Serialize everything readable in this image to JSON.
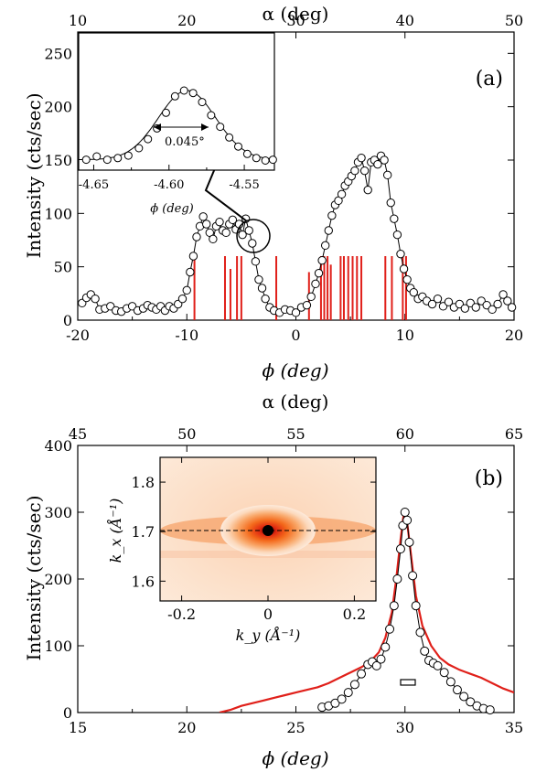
{
  "chart_data": [
    {
      "panel": "(a)",
      "type": "scatter",
      "xlabel": "ϕ (deg)",
      "ylabel": "Intensity (cts/sec)",
      "top_xlabel": "α (deg)",
      "xlim": [
        -20,
        20
      ],
      "ylim": [
        0,
        270
      ],
      "x_ticks": [
        "-20",
        "-10",
        "0",
        "10",
        "20"
      ],
      "y_ticks": [
        "0",
        "50",
        "100",
        "150",
        "200",
        "250"
      ],
      "top_x_ticks": [
        "10",
        "20",
        "30",
        "40",
        "50"
      ],
      "series": [
        {
          "points": [
            [
              -19.6,
              16
            ],
            [
              -19.2,
              21
            ],
            [
              -18.8,
              24
            ],
            [
              -18.4,
              20
            ],
            [
              -18.0,
              10
            ],
            [
              -17.5,
              11
            ],
            [
              -17.0,
              13
            ],
            [
              -16.5,
              9
            ],
            [
              -16.0,
              8
            ],
            [
              -15.5,
              11
            ],
            [
              -15.0,
              13
            ],
            [
              -14.5,
              9
            ],
            [
              -14.0,
              11
            ],
            [
              -13.6,
              14
            ],
            [
              -13.2,
              12
            ],
            [
              -12.8,
              10
            ],
            [
              -12.4,
              13
            ],
            [
              -12.0,
              9
            ],
            [
              -11.6,
              13
            ],
            [
              -11.2,
              11
            ],
            [
              -10.8,
              15
            ],
            [
              -10.4,
              20
            ],
            [
              -10.0,
              28
            ],
            [
              -9.7,
              45
            ],
            [
              -9.4,
              60
            ],
            [
              -9.1,
              78
            ],
            [
              -8.8,
              88
            ],
            [
              -8.5,
              97
            ],
            [
              -8.2,
              90
            ],
            [
              -7.9,
              82
            ],
            [
              -7.6,
              76
            ],
            [
              -7.3,
              88
            ],
            [
              -7.0,
              92
            ],
            [
              -6.7,
              84
            ],
            [
              -6.4,
              82
            ],
            [
              -6.1,
              90
            ],
            [
              -5.8,
              94
            ],
            [
              -5.5,
              85
            ],
            [
              -5.2,
              90
            ],
            [
              -4.9,
              80
            ],
            [
              -4.6,
              95
            ],
            [
              -4.3,
              84
            ],
            [
              -4.0,
              72
            ],
            [
              -3.7,
              55
            ],
            [
              -3.4,
              38
            ],
            [
              -3.1,
              30
            ],
            [
              -2.8,
              20
            ],
            [
              -2.4,
              12
            ],
            [
              -2.0,
              9
            ],
            [
              -1.5,
              7
            ],
            [
              -1.0,
              10
            ],
            [
              -0.5,
              9
            ],
            [
              0.0,
              7
            ],
            [
              0.5,
              12
            ],
            [
              1.0,
              14
            ],
            [
              1.4,
              22
            ],
            [
              1.8,
              34
            ],
            [
              2.1,
              44
            ],
            [
              2.4,
              56
            ],
            [
              2.7,
              70
            ],
            [
              3.0,
              84
            ],
            [
              3.3,
              98
            ],
            [
              3.6,
              108
            ],
            [
              3.9,
              112
            ],
            [
              4.2,
              118
            ],
            [
              4.5,
              126
            ],
            [
              4.8,
              130
            ],
            [
              5.1,
              135
            ],
            [
              5.4,
              140
            ],
            [
              5.7,
              148
            ],
            [
              6.0,
              152
            ],
            [
              6.3,
              140
            ],
            [
              6.6,
              122
            ],
            [
              6.9,
              148
            ],
            [
              7.2,
              150
            ],
            [
              7.5,
              146
            ],
            [
              7.8,
              154
            ],
            [
              8.1,
              150
            ],
            [
              8.4,
              136
            ],
            [
              8.7,
              110
            ],
            [
              9.0,
              95
            ],
            [
              9.3,
              80
            ],
            [
              9.6,
              62
            ],
            [
              9.9,
              48
            ],
            [
              10.2,
              38
            ],
            [
              10.5,
              30
            ],
            [
              10.8,
              26
            ],
            [
              11.2,
              20
            ],
            [
              11.6,
              22
            ],
            [
              12.0,
              18
            ],
            [
              12.5,
              15
            ],
            [
              13.0,
              20
            ],
            [
              13.5,
              13
            ],
            [
              14.0,
              17
            ],
            [
              14.5,
              12
            ],
            [
              15.0,
              15
            ],
            [
              15.5,
              11
            ],
            [
              16.0,
              16
            ],
            [
              16.5,
              12
            ],
            [
              17.0,
              18
            ],
            [
              17.5,
              14
            ],
            [
              18.0,
              10
            ],
            [
              18.5,
              15
            ],
            [
              19.0,
              24
            ],
            [
              19.4,
              18
            ],
            [
              19.8,
              12
            ]
          ]
        }
      ],
      "red_sticks": [
        {
          "x": -9.3,
          "h": 60
        },
        {
          "x": -6.5,
          "h": 60
        },
        {
          "x": -6.0,
          "h": 48
        },
        {
          "x": -5.4,
          "h": 60
        },
        {
          "x": -5.0,
          "h": 60
        },
        {
          "x": -1.8,
          "h": 60
        },
        {
          "x": 1.2,
          "h": 45
        },
        {
          "x": 2.3,
          "h": 60
        },
        {
          "x": 2.6,
          "h": 60
        },
        {
          "x": 2.9,
          "h": 60
        },
        {
          "x": 3.2,
          "h": 52
        },
        {
          "x": 4.1,
          "h": 60
        },
        {
          "x": 4.4,
          "h": 60
        },
        {
          "x": 4.8,
          "h": 60
        },
        {
          "x": 5.2,
          "h": 60
        },
        {
          "x": 5.6,
          "h": 60
        },
        {
          "x": 6.0,
          "h": 60
        },
        {
          "x": 8.2,
          "h": 60
        },
        {
          "x": 8.8,
          "h": 60
        },
        {
          "x": 9.8,
          "h": 60
        },
        {
          "x": 10.1,
          "h": 60
        }
      ],
      "inset": {
        "type": "scatter",
        "xlabel": "ϕ (deg)",
        "x_ticks": [
          "-4.65",
          "-4.60",
          "-4.55"
        ],
        "xlim": [
          -4.66,
          -4.53
        ],
        "ylim": [
          0,
          1
        ],
        "annotation": "0.045°",
        "points": [
          [
            -4.655,
            0.06
          ],
          [
            -4.648,
            0.1
          ],
          [
            -4.641,
            0.06
          ],
          [
            -4.634,
            0.08
          ],
          [
            -4.627,
            0.11
          ],
          [
            -4.62,
            0.2
          ],
          [
            -4.614,
            0.31
          ],
          [
            -4.608,
            0.44
          ],
          [
            -4.602,
            0.63
          ],
          [
            -4.596,
            0.83
          ],
          [
            -4.59,
            0.9
          ],
          [
            -4.584,
            0.87
          ],
          [
            -4.578,
            0.76
          ],
          [
            -4.572,
            0.6
          ],
          [
            -4.566,
            0.46
          ],
          [
            -4.56,
            0.33
          ],
          [
            -4.554,
            0.22
          ],
          [
            -4.548,
            0.13
          ],
          [
            -4.542,
            0.08
          ],
          [
            -4.536,
            0.05
          ],
          [
            -4.531,
            0.06
          ]
        ]
      }
    },
    {
      "panel": "(b)",
      "type": "scatter",
      "xlabel": "ϕ (deg)",
      "ylabel": "Intensity (cts/sec)",
      "top_xlabel": "α (deg)",
      "xlim": [
        15,
        35
      ],
      "ylim": [
        0,
        400
      ],
      "x_ticks": [
        "15",
        "20",
        "25",
        "30",
        "35"
      ],
      "y_ticks": [
        "0",
        "100",
        "200",
        "300",
        "400"
      ],
      "top_x_ticks": [
        "45",
        "50",
        "55",
        "60",
        "65"
      ],
      "red_curve": [
        [
          21.5,
          0
        ],
        [
          22.0,
          4
        ],
        [
          22.5,
          10
        ],
        [
          23.0,
          14
        ],
        [
          23.5,
          18
        ],
        [
          24.0,
          22
        ],
        [
          24.5,
          26
        ],
        [
          25.0,
          30
        ],
        [
          25.5,
          34
        ],
        [
          26.0,
          38
        ],
        [
          26.5,
          44
        ],
        [
          27.0,
          52
        ],
        [
          27.5,
          60
        ],
        [
          28.0,
          68
        ],
        [
          28.4,
          76
        ],
        [
          28.8,
          90
        ],
        [
          29.1,
          112
        ],
        [
          29.4,
          150
        ],
        [
          29.6,
          200
        ],
        [
          29.8,
          260
        ],
        [
          29.95,
          300
        ],
        [
          30.1,
          285
        ],
        [
          30.3,
          230
        ],
        [
          30.5,
          175
        ],
        [
          30.8,
          130
        ],
        [
          31.2,
          100
        ],
        [
          31.6,
          82
        ],
        [
          32.0,
          72
        ],
        [
          32.5,
          64
        ],
        [
          33.0,
          58
        ],
        [
          33.5,
          52
        ],
        [
          34.0,
          44
        ],
        [
          34.5,
          36
        ],
        [
          35.0,
          30
        ]
      ],
      "points": [
        [
          26.2,
          8
        ],
        [
          26.5,
          10
        ],
        [
          26.8,
          14
        ],
        [
          27.1,
          20
        ],
        [
          27.4,
          30
        ],
        [
          27.7,
          42
        ],
        [
          28.0,
          58
        ],
        [
          28.3,
          72
        ],
        [
          28.5,
          76
        ],
        [
          28.7,
          70
        ],
        [
          28.9,
          80
        ],
        [
          29.1,
          98
        ],
        [
          29.3,
          125
        ],
        [
          29.5,
          160
        ],
        [
          29.65,
          200
        ],
        [
          29.8,
          245
        ],
        [
          29.9,
          280
        ],
        [
          30.0,
          300
        ],
        [
          30.1,
          288
        ],
        [
          30.2,
          255
        ],
        [
          30.35,
          205
        ],
        [
          30.5,
          160
        ],
        [
          30.7,
          120
        ],
        [
          30.9,
          92
        ],
        [
          31.1,
          78
        ],
        [
          31.3,
          74
        ],
        [
          31.5,
          70
        ],
        [
          31.8,
          60
        ],
        [
          32.1,
          46
        ],
        [
          32.4,
          34
        ],
        [
          32.7,
          24
        ],
        [
          33.0,
          16
        ],
        [
          33.3,
          10
        ],
        [
          33.6,
          6
        ],
        [
          33.9,
          4
        ]
      ],
      "inset": {
        "type": "heatmap",
        "xlabel": "k_y (Å⁻¹)",
        "ylabel": "k_x (Å⁻¹)",
        "x_ticks": [
          "-0.2",
          "0",
          "0.2"
        ],
        "y_ticks": [
          "1.6",
          "1.7",
          "1.8"
        ],
        "xlim": [
          -0.25,
          0.25
        ],
        "ylim": [
          1.56,
          1.85
        ],
        "center": [
          0.0,
          1.7
        ]
      }
    }
  ],
  "colors": {
    "red": "#e0201a",
    "black": "#000000"
  }
}
